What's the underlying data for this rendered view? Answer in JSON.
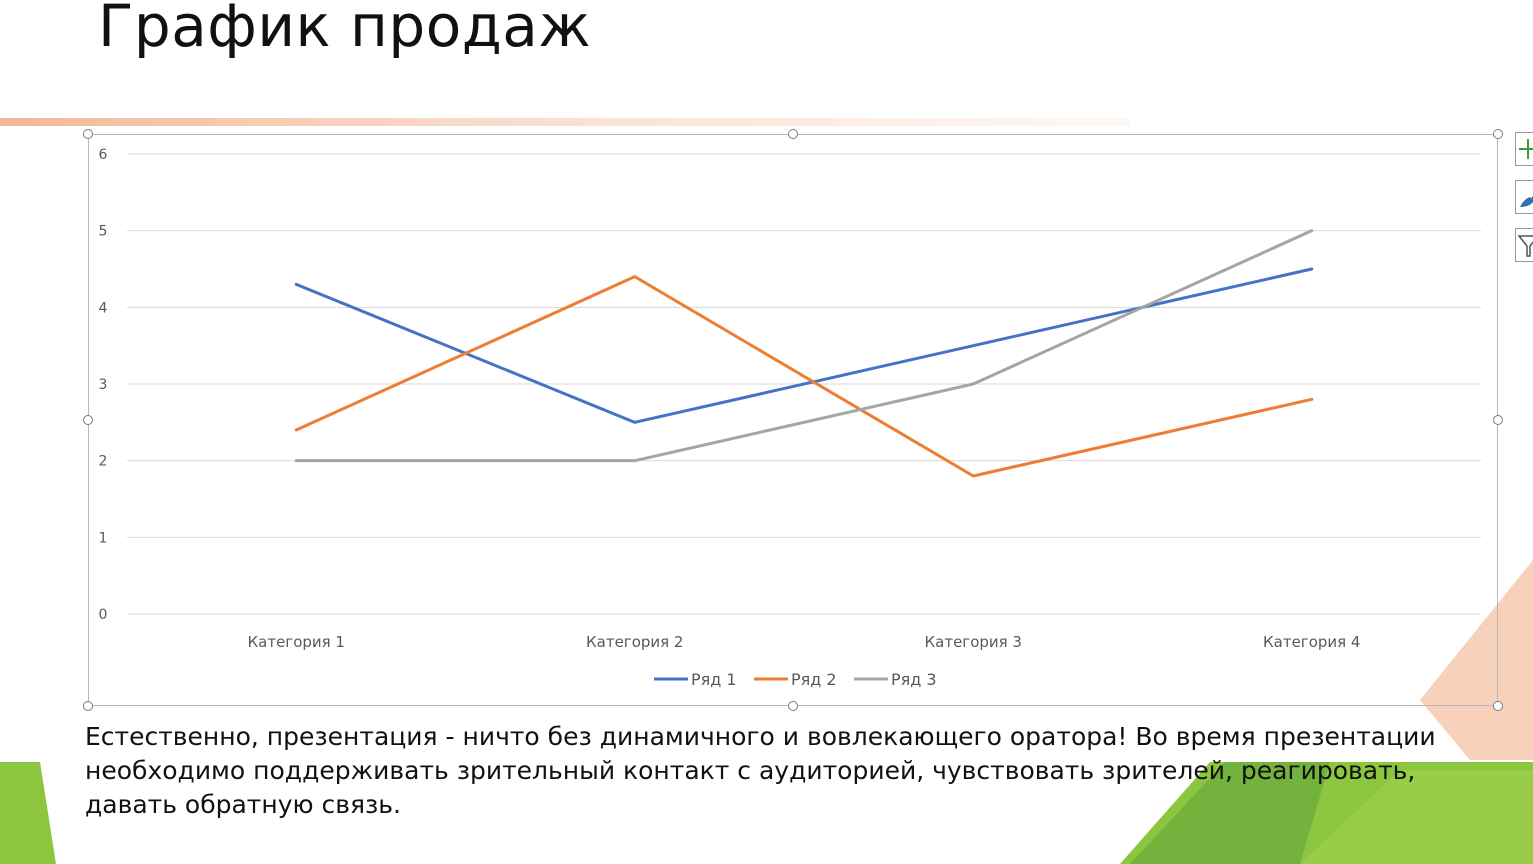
{
  "slide": {
    "title": "График продаж",
    "body_text": "Естественно, презентация - ничто без динамичного и вовлекающего оратора! Во время презентации необходимо поддерживать зрительный контакт с аудиторией, чувствовать зрителей, реагировать, давать обратную связь."
  },
  "theme": {
    "accent_peach": "#f4c2a8",
    "accent_green": "#8cc63f",
    "accent_green_dark": "#6aa33a"
  },
  "chart_data": {
    "type": "line",
    "categories": [
      "Категория 1",
      "Категория 2",
      "Категория 3",
      "Категория 4"
    ],
    "series": [
      {
        "name": "Ряд 1",
        "color": "#4472c4",
        "values": [
          4.3,
          2.5,
          3.5,
          4.5
        ]
      },
      {
        "name": "Ряд 2",
        "color": "#ed7d31",
        "values": [
          2.4,
          4.4,
          1.8,
          2.8
        ]
      },
      {
        "name": "Ряд 3",
        "color": "#a5a5a5",
        "values": [
          2,
          2,
          3,
          5
        ]
      }
    ],
    "ylim": [
      0,
      6
    ],
    "yticks": [
      "0",
      "1",
      "2",
      "3",
      "4",
      "5",
      "6"
    ],
    "grid": true,
    "legend": "bottom"
  }
}
